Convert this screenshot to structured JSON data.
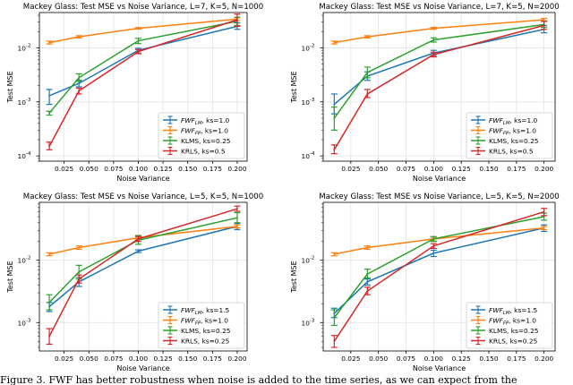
{
  "caption": "Figure 3. FWF has better robustness when noise is added to the time series, as we can expect from the",
  "chart_data": [
    {
      "type": "line",
      "title": "Mackey Glass: Test MSE vs Noise Variance, L=7, K=5, N=1000",
      "xlabel": "Noise Variance",
      "ylabel": "Test MSE",
      "yscale": "log",
      "xlim": [
        0.0,
        0.21
      ],
      "ylim": [
        8e-05,
        0.045
      ],
      "xticks": [
        "0.025",
        "0.050",
        "0.075",
        "0.100",
        "0.125",
        "0.150",
        "0.175",
        "0.200"
      ],
      "yticks": [
        {
          "base": "10",
          "exp": "-4",
          "value": 0.0001
        },
        {
          "base": "10",
          "exp": "-3",
          "value": 0.001
        },
        {
          "base": "10",
          "exp": "-2",
          "value": 0.01
        }
      ],
      "grid": true,
      "legend_position": "lower-right",
      "x": [
        0.01,
        0.04,
        0.1,
        0.2
      ],
      "series": [
        {
          "name": "FWF",
          "sub": "LM",
          "suffix": ", ks=1.0",
          "color": "#1f77b4",
          "values": [
            0.0013,
            0.0022,
            0.009,
            0.025
          ],
          "err": [
            [
              0.0009,
              0.0017
            ],
            [
              0.0019,
              0.0025
            ],
            [
              0.008,
              0.0098
            ],
            [
              0.022,
              0.029
            ]
          ]
        },
        {
          "name": "FWF",
          "sub": "FP",
          "suffix": ", ks=1.0",
          "color": "#ff7f0e",
          "values": [
            0.0125,
            0.016,
            0.023,
            0.034
          ],
          "err": [
            [
              0.0118,
              0.0133
            ],
            [
              0.0152,
              0.0168
            ],
            [
              0.0222,
              0.0238
            ],
            [
              0.032,
              0.036
            ]
          ]
        },
        {
          "name": "KLMS, ks=0.25",
          "sub": "",
          "suffix": "",
          "color": "#2ca02c",
          "values": [
            0.00062,
            0.0028,
            0.0135,
            0.031
          ],
          "err": [
            [
              0.00057,
              0.00067
            ],
            [
              0.0024,
              0.0033
            ],
            [
              0.012,
              0.015
            ],
            [
              0.026,
              0.037
            ]
          ]
        },
        {
          "name": "KRLS, ks=0.5",
          "sub": "",
          "suffix": "",
          "color": "#d62728",
          "values": [
            0.00015,
            0.0016,
            0.0085,
            0.033
          ],
          "err": [
            [
              0.00013,
              0.00018
            ],
            [
              0.0014,
              0.0018
            ],
            [
              0.0078,
              0.0093
            ],
            [
              0.025,
              0.042
            ]
          ]
        }
      ]
    },
    {
      "type": "line",
      "title": "Mackey Glass: Test MSE vs Noise Variance, L=7, K=5, N=2000",
      "xlabel": "Noise Variance",
      "ylabel": "Test MSE",
      "yscale": "log",
      "xlim": [
        0.0,
        0.21
      ],
      "ylim": [
        8e-05,
        0.045
      ],
      "xticks": [
        "0.025",
        "0.050",
        "0.075",
        "0.100",
        "0.125",
        "0.150",
        "0.175",
        "0.200"
      ],
      "yticks": [
        {
          "base": "10",
          "exp": "-4",
          "value": 0.0001
        },
        {
          "base": "10",
          "exp": "-3",
          "value": 0.001
        },
        {
          "base": "10",
          "exp": "-2",
          "value": 0.01
        }
      ],
      "grid": true,
      "legend_position": "lower-right",
      "x": [
        0.01,
        0.04,
        0.1,
        0.2
      ],
      "series": [
        {
          "name": "FWF",
          "sub": "LM",
          "suffix": ", ks=1.0",
          "color": "#1f77b4",
          "values": [
            0.0009,
            0.003,
            0.008,
            0.022
          ],
          "err": [
            [
              0.0006,
              0.0014
            ],
            [
              0.0025,
              0.0036
            ],
            [
              0.0072,
              0.009
            ],
            [
              0.019,
              0.026
            ]
          ]
        },
        {
          "name": "FWF",
          "sub": "FP",
          "suffix": ", ks=1.0",
          "color": "#ff7f0e",
          "values": [
            0.0125,
            0.016,
            0.023,
            0.033
          ],
          "err": [
            [
              0.0118,
              0.0133
            ],
            [
              0.0152,
              0.0168
            ],
            [
              0.022,
              0.024
            ],
            [
              0.031,
              0.035
            ]
          ]
        },
        {
          "name": "KLMS, ks=0.25",
          "sub": "",
          "suffix": "",
          "color": "#2ca02c",
          "values": [
            0.0005,
            0.0035,
            0.014,
            0.027
          ],
          "err": [
            [
              0.0003,
              0.0008
            ],
            [
              0.0028,
              0.0044
            ],
            [
              0.0128,
              0.0153
            ],
            [
              0.024,
              0.031
            ]
          ]
        },
        {
          "name": "KRLS, ks=0.5",
          "sub": "",
          "suffix": "",
          "color": "#d62728",
          "values": [
            0.00013,
            0.0014,
            0.0075,
            0.026
          ],
          "err": [
            [
              0.00011,
              0.00016
            ],
            [
              0.0012,
              0.0017
            ],
            [
              0.0068,
              0.0083
            ],
            [
              0.022,
              0.031
            ]
          ]
        }
      ]
    },
    {
      "type": "line",
      "title": "Mackey Glass: Test MSE vs Noise Variance, L=5, K=5, N=1000",
      "xlabel": "Noise Variance",
      "ylabel": "Test MSE",
      "yscale": "log",
      "xlim": [
        0.0,
        0.21
      ],
      "ylim": [
        0.00035,
        0.085
      ],
      "xticks": [
        "0.025",
        "0.050",
        "0.075",
        "0.100",
        "0.125",
        "0.150",
        "0.175",
        "0.200"
      ],
      "yticks": [
        {
          "base": "10",
          "exp": "-3",
          "value": 0.001
        },
        {
          "base": "10",
          "exp": "-2",
          "value": 0.01
        }
      ],
      "grid": true,
      "legend_position": "lower-right",
      "x": [
        0.01,
        0.04,
        0.1,
        0.2
      ],
      "series": [
        {
          "name": "FWF",
          "sub": "LM",
          "suffix": ", ks=1.5",
          "color": "#1f77b4",
          "values": [
            0.0018,
            0.0045,
            0.014,
            0.035
          ],
          "err": [
            [
              0.0015,
              0.0021
            ],
            [
              0.0038,
              0.0053
            ],
            [
              0.0133,
              0.0147
            ],
            [
              0.031,
              0.039
            ]
          ]
        },
        {
          "name": "FWF",
          "sub": "FP",
          "suffix": ", ks=1.0",
          "color": "#ff7f0e",
          "values": [
            0.0125,
            0.016,
            0.023,
            0.035
          ],
          "err": [
            [
              0.0118,
              0.0132
            ],
            [
              0.015,
              0.017
            ],
            [
              0.0218,
              0.0242
            ],
            [
              0.033,
              0.037
            ]
          ]
        },
        {
          "name": "KLMS, ks=0.25",
          "sub": "",
          "suffix": "",
          "color": "#2ca02c",
          "values": [
            0.0021,
            0.0065,
            0.021,
            0.048
          ],
          "err": [
            [
              0.0016,
              0.0028
            ],
            [
              0.005,
              0.0083
            ],
            [
              0.018,
              0.025
            ],
            [
              0.04,
              0.058
            ]
          ]
        },
        {
          "name": "KRLS, ks=0.25",
          "sub": "",
          "suffix": "",
          "color": "#d62728",
          "values": [
            0.0006,
            0.005,
            0.022,
            0.067
          ],
          "err": [
            [
              0.00045,
              0.0008
            ],
            [
              0.0043,
              0.0058
            ],
            [
              0.02,
              0.024
            ],
            [
              0.061,
              0.074
            ]
          ]
        }
      ]
    },
    {
      "type": "line",
      "title": "Mackey Glass: Test MSE vs Noise Variance, L=5, K=5, N=2000",
      "xlabel": "Noise Variance",
      "ylabel": "Test MSE",
      "yscale": "log",
      "xlim": [
        0.0,
        0.21
      ],
      "ylim": [
        0.00035,
        0.085
      ],
      "xticks": [
        "0.025",
        "0.050",
        "0.075",
        "0.100",
        "0.125",
        "0.150",
        "0.175",
        "0.200"
      ],
      "yticks": [
        {
          "base": "10",
          "exp": "-3",
          "value": 0.001
        },
        {
          "base": "10",
          "exp": "-2",
          "value": 0.01
        }
      ],
      "grid": true,
      "legend_position": "lower-right",
      "x": [
        0.01,
        0.04,
        0.1,
        0.2
      ],
      "series": [
        {
          "name": "FWF",
          "sub": "LM",
          "suffix": ", ks=1.5",
          "color": "#1f77b4",
          "values": [
            0.0014,
            0.0045,
            0.013,
            0.033
          ],
          "err": [
            [
              0.0012,
              0.0017
            ],
            [
              0.004,
              0.005
            ],
            [
              0.0115,
              0.0145
            ],
            [
              0.029,
              0.037
            ]
          ]
        },
        {
          "name": "FWF",
          "sub": "FP",
          "suffix": ", ks=1.0",
          "color": "#ff7f0e",
          "values": [
            0.0125,
            0.016,
            0.022,
            0.033
          ],
          "err": [
            [
              0.0118,
              0.0132
            ],
            [
              0.015,
              0.017
            ],
            [
              0.0205,
              0.0235
            ],
            [
              0.031,
              0.035
            ]
          ]
        },
        {
          "name": "KLMS, ks=0.25",
          "sub": "",
          "suffix": "",
          "color": "#2ca02c",
          "values": [
            0.0012,
            0.006,
            0.022,
            0.05
          ],
          "err": [
            [
              0.0009,
              0.0016
            ],
            [
              0.0052,
              0.0072
            ],
            [
              0.02,
              0.024
            ],
            [
              0.044,
              0.057
            ]
          ]
        },
        {
          "name": "KRLS, ks=0.25",
          "sub": "",
          "suffix": "",
          "color": "#d62728",
          "values": [
            0.0005,
            0.0032,
            0.017,
            0.06
          ],
          "err": [
            [
              0.0004,
              0.00062
            ],
            [
              0.0028,
              0.0037
            ],
            [
              0.0155,
              0.0185
            ],
            [
              0.052,
              0.068
            ]
          ]
        }
      ]
    }
  ]
}
